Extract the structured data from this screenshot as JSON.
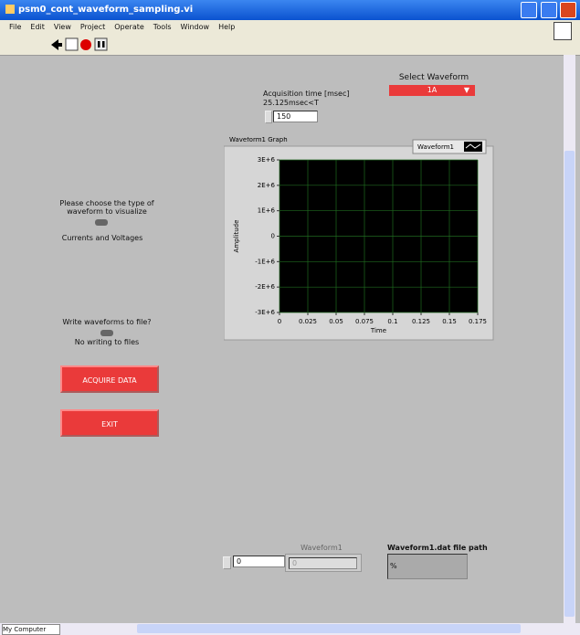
{
  "window": {
    "title": "psm0_cont_waveform_sampling.vi"
  },
  "menu": [
    "File",
    "Edit",
    "View",
    "Project",
    "Operate",
    "Tools",
    "Window",
    "Help"
  ],
  "select_waveform": {
    "label": "Select Waveform",
    "value": "1A"
  },
  "acquisition": {
    "label": "Acquisition time [msec]",
    "note": "25.125msec<T",
    "value": "150"
  },
  "type_switch": {
    "label": "Please choose the type of waveform to visualize",
    "state": "Currents and Voltages"
  },
  "write_switch": {
    "label": "Write waveforms to file?",
    "state": "No writing to files"
  },
  "buttons": {
    "acquire": "ACQUIRE DATA",
    "exit": "EXIT"
  },
  "graph": {
    "title": "Waveform1 Graph",
    "legend": "Waveform1",
    "x_label": "Time",
    "y_label": "Amplitude",
    "xlim": [
      0,
      0.175
    ],
    "xticks": [
      0,
      0.025,
      0.05,
      0.075,
      0.1,
      0.125,
      0.15,
      0.175
    ],
    "ylim": [
      -3000000,
      3000000
    ],
    "yticks": [
      {
        "value": 3000000,
        "label": "3E+6"
      },
      {
        "value": 2000000,
        "label": "2E+6"
      },
      {
        "value": 1000000,
        "label": "1E+6"
      },
      0,
      {
        "value": -1000000,
        "label": "-1E+6"
      },
      {
        "value": -2000000,
        "label": "-2E+6"
      },
      {
        "value": -3000000,
        "label": "-3E+6"
      }
    ],
    "grid": true
  },
  "array": {
    "index": "0",
    "label": "Waveform1",
    "value": "0"
  },
  "file_path": {
    "label": "Waveform1.dat file path",
    "value": "%"
  },
  "status": "My Computer"
}
